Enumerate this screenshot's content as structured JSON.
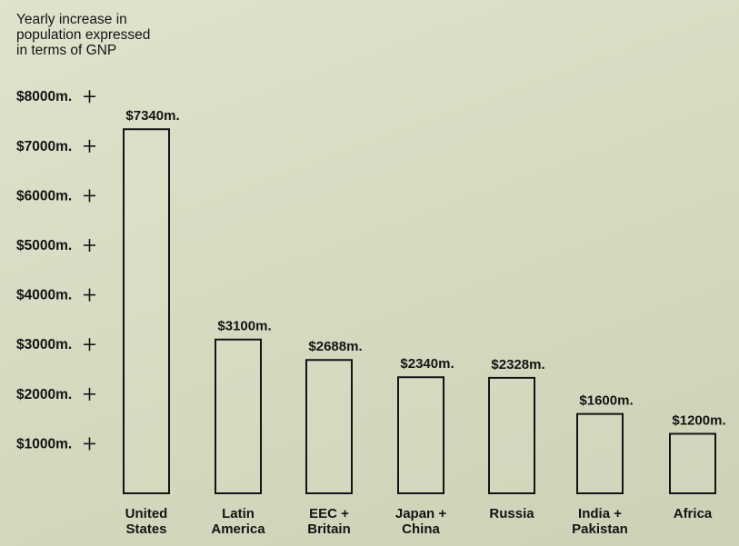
{
  "chart_data": {
    "type": "bar",
    "ylabel_lines": [
      "Yearly increase in",
      "population expressed",
      "in terms of GNP"
    ],
    "y_ticks": [
      {
        "value": 1000,
        "label": "$1000m."
      },
      {
        "value": 2000,
        "label": "$2000m."
      },
      {
        "value": 3000,
        "label": "$3000m."
      },
      {
        "value": 4000,
        "label": "$4000m."
      },
      {
        "value": 5000,
        "label": "$5000m."
      },
      {
        "value": 6000,
        "label": "$6000m."
      },
      {
        "value": 7000,
        "label": "$7000m."
      },
      {
        "value": 8000,
        "label": "$8000m."
      }
    ],
    "ylim": [
      0,
      8000
    ],
    "grid": false,
    "categories": [
      {
        "lines": [
          "United",
          "States"
        ]
      },
      {
        "lines": [
          "Latin",
          "America"
        ]
      },
      {
        "lines": [
          "EEC +",
          "Britain"
        ]
      },
      {
        "lines": [
          "Japan +",
          "China"
        ]
      },
      {
        "lines": [
          "Russia"
        ]
      },
      {
        "lines": [
          "India +",
          "Pakistan"
        ]
      },
      {
        "lines": [
          "Africa"
        ]
      }
    ],
    "values": [
      7340,
      3100,
      2688,
      2340,
      2328,
      1600,
      1200
    ],
    "data_labels": [
      "$7340m.",
      "$3100m.",
      "$2688m.",
      "$2340m.",
      "$2328m.",
      "$1600m.",
      "$1200m."
    ]
  }
}
